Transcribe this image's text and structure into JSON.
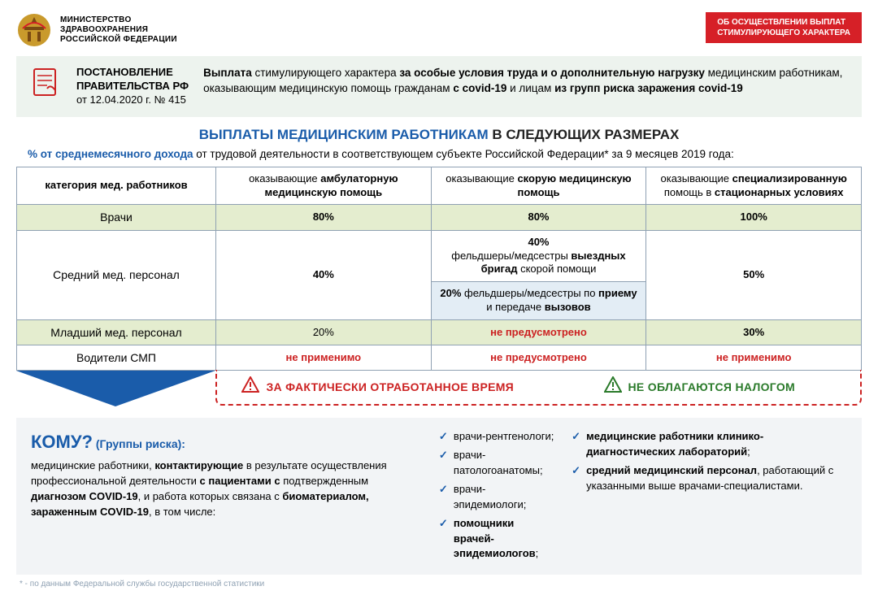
{
  "header": {
    "ministry_line1": "МИНИСТЕРСТВО",
    "ministry_line2": "ЗДРАВООХРАНЕНИЯ",
    "ministry_line3": "РОССИЙСКОЙ ФЕДЕРАЦИИ",
    "badge_line1": "ОБ ОСУЩЕСТВЛЕНИИ ВЫПЛАТ",
    "badge_line2": "СТИМУЛИРУЮЩЕГО ХАРАКТЕРА"
  },
  "decree": {
    "title_line1": "ПОСТАНОВЛЕНИЕ",
    "title_line2": "ПРАВИТЕЛЬСТВА РФ",
    "title_line3": "от 12.04.2020 г. № 415",
    "text_html": "<b>Выплата</b> стимулирующего характера <b>за особые условия труда и о дополнительную нагрузку</b> медицинским работникам, оказывающим медицинскую помощь гражданам <b>с covid-19</b> и лицам <b>из групп риска заражения covid-19</b>"
  },
  "section": {
    "title_blue": "ВЫПЛАТЫ МЕДИЦИНСКИМ РАБОТНИКАМ",
    "title_dark": " В СЛЕДУЮЩИХ РАЗМЕРАХ",
    "percent_blue": "% от среднемесячного дохода",
    "percent_rest": " от трудовой деятельности в соответствующем субъекте Российской Федерации* за 9 месяцев 2019 года:"
  },
  "table": {
    "head": {
      "c0": "категория мед. работников",
      "c1_html": "оказывающие <b>амбулаторную медицинскую помощь</b>",
      "c2_html": "оказывающие <b>скорую медицинскую помощь</b>",
      "c3_html": "оказывающие <b>специализированную</b> помощь в <b>стационарных условиях</b>"
    },
    "rows": {
      "r0": {
        "cat": "Врачи",
        "c1": "80%",
        "c2": "80%",
        "c3": "100%"
      },
      "r1": {
        "cat": "Средний мед. персонал",
        "c1": "40%",
        "c2top_html": "<b>40%</b><br>фельдшеры/медсестры <b>выездных бригад</b> скорой помощи",
        "c2bot_html": "<b>20%</b> фельдшеры/медсестры по <b>приему</b> и передаче <b>вызовов</b>",
        "c3": "50%"
      },
      "r2": {
        "cat": "Младший мед. персонал",
        "c1": "20%",
        "c2": "не предусмотрено",
        "c3": "30%"
      },
      "r3": {
        "cat": "Водители СМП",
        "c1": "не применимо",
        "c2": "не предусмотрено",
        "c3": "не применимо"
      }
    }
  },
  "notices": {
    "red": "ЗА ФАКТИЧЕСКИ ОТРАБОТАННОЕ ВРЕМЯ",
    "green": "НЕ ОБЛАГАЮТСЯ НАЛОГОМ"
  },
  "bottom": {
    "komu": "КОМУ?",
    "komu_sub": " (Группы риска):",
    "text_html": "медицинские работники, <b>контактирующие</b> в результате осуществления профессиональной деятельности <b>с пациентами с</b> подтвержденным <b>диагнозом COVID-19</b>, и работа которых связана с <b>биоматериалом, зараженным COVID-19</b>, в том числе:",
    "list1": {
      "i0": "врачи-рентгенологи;",
      "i1": "врачи-патологоанатомы;",
      "i2": "врачи-эпидемиологи;",
      "i3_html": "<b>помощники врачей-эпидемиологов</b>;"
    },
    "list2": {
      "i0_html": "<b>медицинские работники клинико-диагностических лабораторий</b>;",
      "i1_html": "<b>средний медицинский персонал</b>, работающий с указанными выше врачами-специалистами."
    }
  },
  "footnote": "* - по данным Федеральной службы государственной статистики",
  "colors": {
    "brand_blue": "#1a5caa",
    "accent_red": "#d62027",
    "box_mint": "#edf3ee",
    "row_green": "#e4edcf",
    "cell_blue": "#e3edf5",
    "border": "#8fa1b3",
    "footer_bg": "#f2f4f6",
    "text_green": "#2a7a2a"
  }
}
